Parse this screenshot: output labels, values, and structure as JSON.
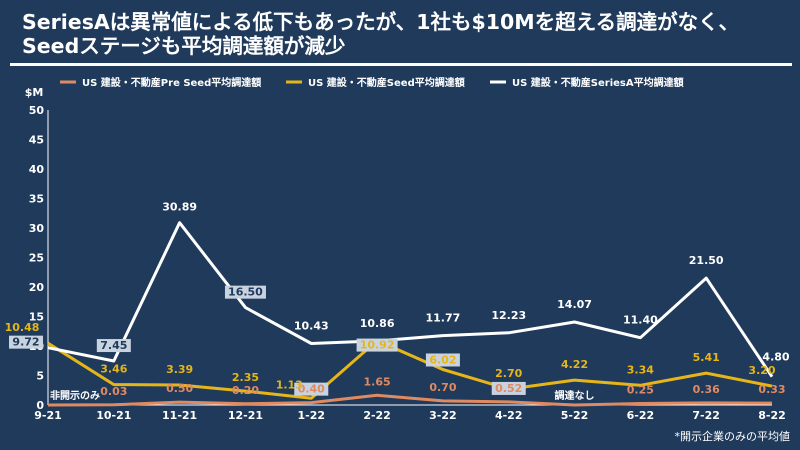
{
  "title_line1": "SeriesAは異常値による低下もあったが、1社も$10Mを超える調達がなく、",
  "title_line2": "Seedステージも平均調達額が減少",
  "footnote": "*開示企業のみの平均値",
  "colors": {
    "background": "#1f3a5b",
    "preseed": "#e08a62",
    "seed": "#e6b619",
    "seriesA": "#ffffff",
    "box": "#c9d3df"
  },
  "chart_data": {
    "type": "line",
    "ylabel": "$M",
    "ylim": [
      0,
      50
    ],
    "yticks": [
      0,
      5,
      10,
      15,
      20,
      25,
      30,
      35,
      40,
      45,
      50
    ],
    "categories": [
      "9-21",
      "10-21",
      "11-21",
      "12-21",
      "1-22",
      "2-22",
      "3-22",
      "4-22",
      "5-22",
      "6-22",
      "7-22",
      "8-22"
    ],
    "legend_position": "top",
    "series": [
      {
        "name": "US 建設・不動産Pre Seed平均調達額",
        "key": "preseed",
        "values": [
          null,
          0.03,
          0.5,
          0.2,
          0.4,
          1.65,
          0.7,
          0.52,
          null,
          0.25,
          0.36,
          0.33
        ],
        "labels": [
          "",
          "0.03",
          "0.50",
          "0.20",
          "0.40",
          "1.65",
          "0.70",
          "0.52",
          "",
          "0.25",
          "0.36",
          "0.33"
        ]
      },
      {
        "name": "US 建設・不動産Seed平均調達額",
        "key": "seed",
        "values": [
          10.48,
          3.46,
          3.39,
          2.35,
          1.13,
          10.92,
          6.02,
          2.7,
          4.22,
          3.34,
          5.41,
          3.2
        ],
        "labels": [
          "10.48",
          "3.46",
          "3.39",
          "2.35",
          "1.13",
          "10.92",
          "6.02",
          "2.70",
          "4.22",
          "3.34",
          "5.41",
          "3.20"
        ]
      },
      {
        "name": "US 建設・不動産SeriesA平均調達額",
        "key": "seriesA",
        "values": [
          9.72,
          7.45,
          30.89,
          16.5,
          10.43,
          10.86,
          11.77,
          12.23,
          14.07,
          11.4,
          21.5,
          4.8
        ],
        "labels": [
          "9.72",
          "7.45",
          "30.89",
          "16.50",
          "10.43",
          "10.86",
          "11.77",
          "12.23",
          "14.07",
          "11.40",
          "21.50",
          "4.80"
        ]
      }
    ],
    "annotations": [
      {
        "text": "非開示のみ",
        "category": "9-21"
      },
      {
        "text": "調達なし",
        "category": "5-22"
      }
    ]
  }
}
